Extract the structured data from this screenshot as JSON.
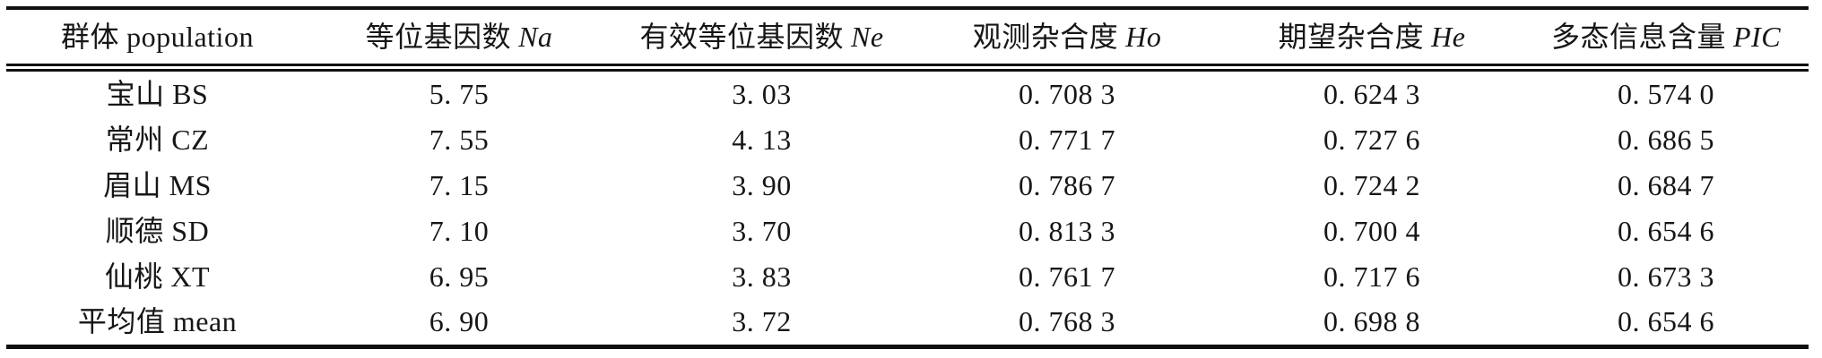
{
  "table": {
    "columns": [
      {
        "zh": "群体",
        "latin": "population"
      },
      {
        "zh": "等位基因数",
        "sym": "Na"
      },
      {
        "zh": "有效等位基因数",
        "sym": "Ne"
      },
      {
        "zh": "观测杂合度",
        "sym": "Ho"
      },
      {
        "zh": "期望杂合度",
        "sym": "He"
      },
      {
        "zh": "多态信息含量",
        "sym": "PIC"
      }
    ],
    "rows": [
      {
        "label": "宝山 BS",
        "cells": [
          "5. 75",
          "3. 03",
          "0. 708 3",
          "0. 624 3",
          "0. 574 0"
        ]
      },
      {
        "label": "常州 CZ",
        "cells": [
          "7. 55",
          "4. 13",
          "0. 771 7",
          "0. 727 6",
          "0. 686 5"
        ]
      },
      {
        "label": "眉山 MS",
        "cells": [
          "7. 15",
          "3. 90",
          "0. 786 7",
          "0. 724 2",
          "0. 684 7"
        ]
      },
      {
        "label": "顺德 SD",
        "cells": [
          "7. 10",
          "3. 70",
          "0. 813 3",
          "0. 700 4",
          "0. 654 6"
        ]
      },
      {
        "label": "仙桃 XT",
        "cells": [
          "6. 95",
          "3. 83",
          "0. 761 7",
          "0. 717 6",
          "0. 673 3"
        ]
      },
      {
        "label": "平均值 mean",
        "cells": [
          "6. 90",
          "3. 72",
          "0. 768 3",
          "0. 698 8",
          "0. 654 6"
        ]
      }
    ],
    "rule_color": "#101010",
    "text_color": "#161616",
    "background": "#ffffff"
  }
}
